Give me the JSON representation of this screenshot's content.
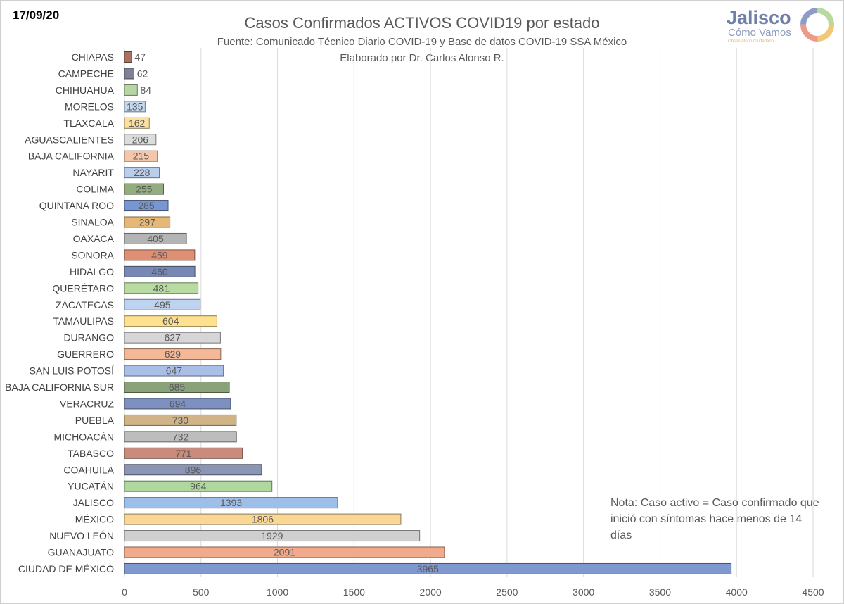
{
  "date": "17/09/20",
  "title": "Casos Confirmados ACTIVOS COVID19 por estado",
  "subtitle_1": "Fuente: Comunicado Técnico Diario COVID-19 y Base de datos COVID-19 SSA México",
  "subtitle_2": "Elaborado por Dr. Carlos Alonso R.",
  "logo": {
    "name": "Jalisco",
    "tagline": "Cómo Vamos",
    "small": "Observatorio Ciudadano"
  },
  "note": "Nota: Caso activo = Caso confirmado que inició con síntomas hace menos de 14 días",
  "chart_data": {
    "type": "bar",
    "orientation": "horizontal",
    "categories": [
      "CHIAPAS",
      "CAMPECHE",
      "CHIHUAHUA",
      "MORELOS",
      "TLAXCALA",
      "AGUASCALIENTES",
      "BAJA CALIFORNIA",
      "NAYARIT",
      "COLIMA",
      "QUINTANA ROO",
      "SINALOA",
      "OAXACA",
      "SONORA",
      "HIDALGO",
      "QUERÉTARO",
      "ZACATECAS",
      "TAMAULIPAS",
      "DURANGO",
      "GUERRERO",
      "SAN LUIS POTOSÍ",
      "BAJA CALIFORNIA SUR",
      "VERACRUZ",
      "PUEBLA",
      "MICHOACÁN",
      "TABASCO",
      "COAHUILA",
      "YUCATÁN",
      "JALISCO",
      "MÉXICO",
      "NUEVO LEÓN",
      "GUANAJUATO",
      "CIUDAD DE MÉXICO"
    ],
    "values": [
      47,
      62,
      84,
      135,
      162,
      206,
      215,
      228,
      255,
      285,
      297,
      405,
      459,
      460,
      481,
      495,
      604,
      627,
      629,
      647,
      685,
      694,
      730,
      732,
      771,
      896,
      964,
      1393,
      1806,
      1929,
      2091,
      3965
    ],
    "value_labels": [
      "47",
      "62",
      "84",
      "135",
      "162",
      "206",
      "215",
      "228",
      "255",
      "285",
      "297",
      "405",
      "459",
      "460",
      "481",
      "495",
      "604",
      "627",
      "629",
      "647",
      "685",
      "694",
      "730",
      "732",
      "771",
      "896",
      "964",
      "1393",
      "1806",
      "1929",
      "2091",
      "3965"
    ],
    "palette": [
      "#a9735f",
      "#7d8296",
      "#b7d6a6",
      "#c4d8ef",
      "#fbe0a0",
      "#dcdcdc",
      "#f4c6aa",
      "#b9cdec",
      "#93ad7f",
      "#7896d2",
      "#e6b878",
      "#b4b4b4",
      "#df8f73",
      "#7888b4",
      "#b7dba0",
      "#bed3ef",
      "#fde18f",
      "#d6d6d6",
      "#f4b896",
      "#a9bfe7",
      "#8aa27a",
      "#7e90bf",
      "#d0b488",
      "#bdbdbd",
      "#c98c7c",
      "#8c96b4",
      "#b1d7a0",
      "#9ebeea",
      "#fad894",
      "#cfcfcf",
      "#f1ab8c",
      "#7f98d0"
    ],
    "ticks": [
      "0",
      "500",
      "1000",
      "1500",
      "2000",
      "2500",
      "3000",
      "3500",
      "4000",
      "4500"
    ],
    "xlim": [
      0,
      4500
    ],
    "grid": true,
    "legend": "none"
  }
}
